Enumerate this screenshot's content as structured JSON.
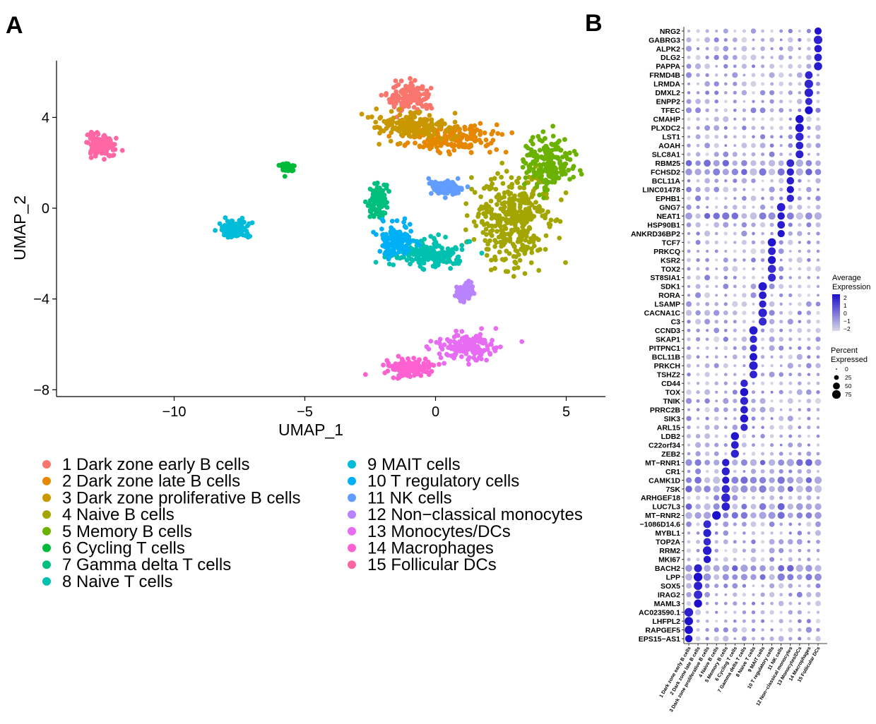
{
  "panels": {
    "a_label": "A",
    "b_label": "B"
  },
  "chart_data": [
    {
      "type": "scatter",
      "title": "",
      "xlabel": "UMAP_1",
      "ylabel": "UMAP_2",
      "xlim": [
        -14.5,
        6.5
      ],
      "ylim": [
        -8.3,
        6.5
      ],
      "x_ticks": [
        -10,
        -5,
        0,
        5
      ],
      "x_tick_labels": [
        "−10",
        "−5",
        "0",
        "5"
      ],
      "y_ticks": [
        -8,
        -4,
        0,
        4
      ],
      "y_tick_labels": [
        "−8",
        "−4",
        "0",
        "4"
      ],
      "legend_position": "bottom, two columns",
      "clusters": [
        {
          "id": 1,
          "name": "1 Dark zone early B cells",
          "color": "#F8766D",
          "cx": -1.0,
          "cy": 4.9,
          "sx": 0.75,
          "sy": 0.6
        },
        {
          "id": 2,
          "name": "2 Dark zone late B cells",
          "color": "#E58700",
          "cx": 0.6,
          "cy": 3.1,
          "sx": 1.4,
          "sy": 0.55
        },
        {
          "id": 3,
          "name": "3 Dark zone proliferative B cells",
          "color": "#C99800",
          "cx": -0.9,
          "cy": 3.6,
          "sx": 1.2,
          "sy": 0.5
        },
        {
          "id": 4,
          "name": "4 Naive B cells",
          "color": "#A3A500",
          "cx": 3.0,
          "cy": -0.6,
          "sx": 1.3,
          "sy": 1.8
        },
        {
          "id": 5,
          "name": "5 Memory B cells",
          "color": "#6BB100",
          "cx": 4.3,
          "cy": 2.0,
          "sx": 0.8,
          "sy": 1.1
        },
        {
          "id": 6,
          "name": "6 Cycling T cells",
          "color": "#00BA38",
          "cx": -5.7,
          "cy": 1.8,
          "sx": 0.2,
          "sy": 0.15
        },
        {
          "id": 7,
          "name": "7 Gamma delta T cells",
          "color": "#00BF7D",
          "cx": -2.2,
          "cy": 0.3,
          "sx": 0.3,
          "sy": 0.6
        },
        {
          "id": 8,
          "name": "8 Naive T cells",
          "color": "#00C0AF",
          "cx": -0.3,
          "cy": -2.0,
          "sx": 1.2,
          "sy": 0.6
        },
        {
          "id": 9,
          "name": "9 MAIT cells",
          "color": "#00BCD8",
          "cx": -7.7,
          "cy": -0.9,
          "sx": 0.5,
          "sy": 0.35
        },
        {
          "id": 10,
          "name": "10 T regulatory cells",
          "color": "#00B0F6",
          "cx": -1.5,
          "cy": -1.4,
          "sx": 0.6,
          "sy": 0.6
        },
        {
          "id": 11,
          "name": "11 NK  cells",
          "color": "#619CFF",
          "cx": 0.4,
          "cy": 0.9,
          "sx": 0.6,
          "sy": 0.3
        },
        {
          "id": 12,
          "name": "12 Non−classical monocytes",
          "color": "#B983FF",
          "cx": 1.1,
          "cy": -3.7,
          "sx": 0.3,
          "sy": 0.3
        },
        {
          "id": 13,
          "name": "13 Monocytes/DCs",
          "color": "#E76BF3",
          "cx": 1.2,
          "cy": -6.1,
          "sx": 1.0,
          "sy": 0.5
        },
        {
          "id": 14,
          "name": "14 Macrophages",
          "color": "#FD61D1",
          "cx": -1.0,
          "cy": -7.0,
          "sx": 0.9,
          "sy": 0.35
        },
        {
          "id": 15,
          "name": "15 Follicular DCs",
          "color": "#FF67A4",
          "cx": -12.8,
          "cy": 2.7,
          "sx": 0.45,
          "sy": 0.5
        }
      ]
    },
    {
      "type": "dot",
      "title": "",
      "xlabel": "",
      "ylabel": "",
      "genes": [
        "NRG2",
        "GABRG3",
        "ALPK2",
        "DLG2",
        "PAPPA",
        "FRMD4B",
        "LRMDA",
        "DMXL2",
        "ENPP2",
        "TFEC",
        "CMAHP",
        "PLXDC2",
        "LST1",
        "AOAH",
        "SLC8A1",
        "RBM25",
        "FCHSD2",
        "BCL11A",
        "LINC01478",
        "EPHB1",
        "GNG7",
        "NEAT1",
        "HSP90B1",
        "ANKRD36BP2",
        "TCF7",
        "PRKCQ",
        "KSR2",
        "TOX2",
        "ST8SIA1",
        "SDK1",
        "RORA",
        "LSAMP",
        "CACNA1C",
        "C3",
        "CCND3",
        "SKAP1",
        "PITPNC1",
        "BCL11B",
        "PRKCH",
        "TSHZ2",
        "CD44",
        "TOX",
        "TNIK",
        "PRRC2B",
        "SIK3",
        "ARL15",
        "LDB2",
        "C22orf34",
        "ZEB2",
        "MT−RNR1",
        "CR1",
        "CAMK1D",
        "7SK",
        "ARHGEF18",
        "LUC7L3",
        "MT−RNR2",
        "−1086D14.6",
        "MYBL1",
        "TOP2A",
        "RRM2",
        "MKI67",
        "BACH2",
        "LPP",
        "SOX5",
        "IRAG2",
        "MAML3",
        "AC023590.1",
        "LHFPL2",
        "RAPGEF5",
        "EPS15−AS1"
      ],
      "clusters": [
        "1 Dark zone early B cells",
        "2 Dark zone late B cells",
        "3 Dark zone proliferative B cells",
        "4 Naive B cells",
        "5 Memory B cells",
        "6 Cycling T cells",
        "7 Gamma delta T cells",
        "8 Naive T cells",
        "9 MAIT cells",
        "10 T regulatory cells",
        "11 NK  cells",
        "12 Non−classical monocytes",
        "13 Monocytes/DCs",
        "14 Macrophages",
        "15 Follicular DCs"
      ],
      "marker_clusters": [
        15,
        15,
        15,
        15,
        15,
        14,
        14,
        14,
        14,
        14,
        13,
        13,
        13,
        13,
        13,
        12,
        12,
        12,
        12,
        12,
        11,
        11,
        11,
        11,
        10,
        10,
        10,
        10,
        10,
        9,
        9,
        9,
        9,
        9,
        8,
        8,
        8,
        8,
        8,
        8,
        7,
        7,
        7,
        7,
        7,
        7,
        6,
        6,
        6,
        5,
        5,
        5,
        5,
        5,
        5,
        4,
        3,
        3,
        3,
        3,
        3,
        2,
        2,
        2,
        2,
        2,
        1,
        1,
        1,
        1
      ],
      "legend": {
        "avg_title": "Average\nExpression",
        "avg_ticks": [
          "2",
          "1",
          "0",
          "−1",
          "−2"
        ],
        "avg_colors": [
          "#d9d9e6",
          "#1a0dcc"
        ],
        "pct_title": "Percent\nExpressed",
        "pct_ticks": [
          "0",
          "25",
          "50",
          "75"
        ]
      }
    }
  ]
}
